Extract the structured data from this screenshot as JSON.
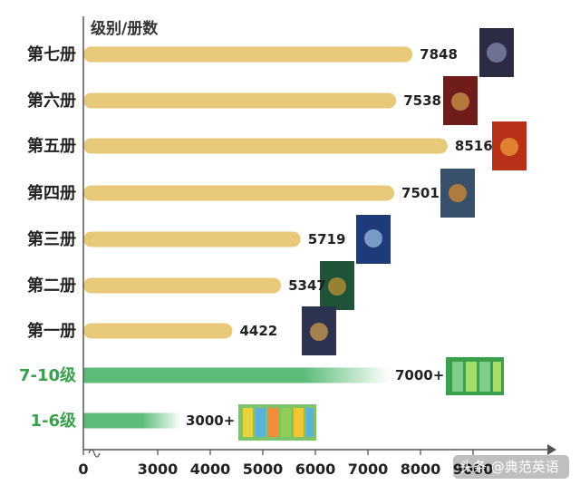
{
  "chart_data": {
    "type": "bar",
    "orientation": "horizontal",
    "ylabel": "级别/册数",
    "categories": [
      "第七册",
      "第六册",
      "第五册",
      "第四册",
      "第三册",
      "第二册",
      "第一册",
      "7-10级",
      "1-6级"
    ],
    "values": [
      7848,
      7538,
      8516,
      7501,
      5719,
      5347,
      4422,
      7000,
      3000
    ],
    "value_labels": [
      "7848",
      "7538",
      "8516",
      "7501",
      "5719",
      "5347",
      "4422",
      "7000+",
      "3000+"
    ],
    "xaxis": {
      "ticks": [
        "0",
        "3000",
        "4000",
        "5000",
        "6000",
        "7000",
        "8000",
        "9000"
      ]
    },
    "axis_break": true,
    "grid": false,
    "colors": {
      "book_bar": "#e8c97a",
      "level_bar": "#5dbb7a",
      "book_label": "#222222",
      "level_label": "#3aa04e"
    }
  },
  "watermark": "头条 @典范英语"
}
